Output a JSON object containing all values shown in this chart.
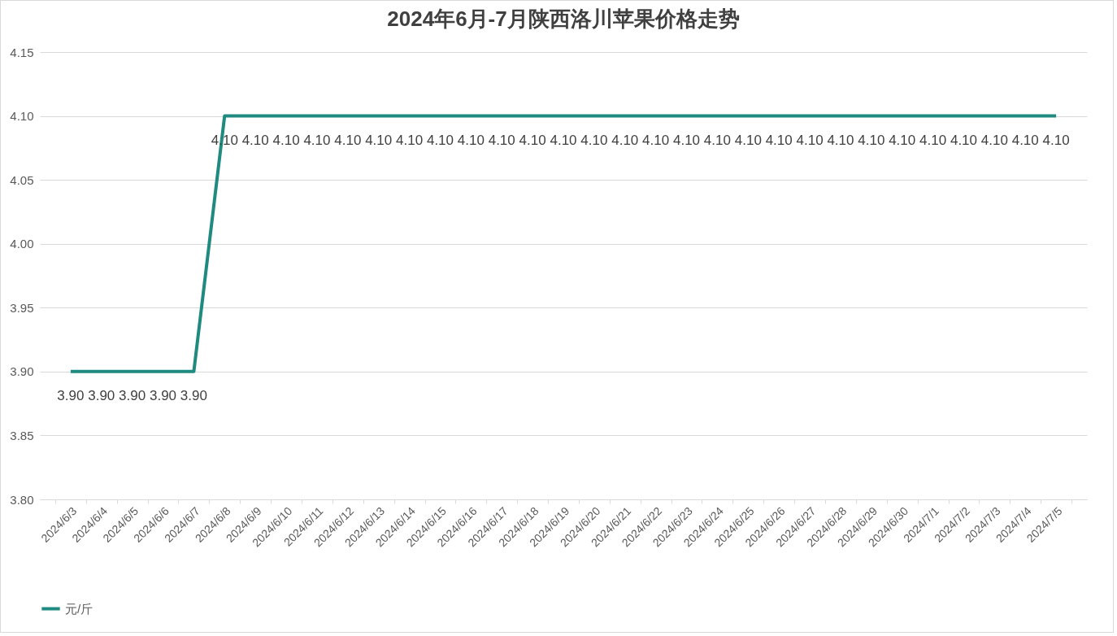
{
  "chart_data": {
    "type": "line",
    "title": "2024年6月-7月陕西洛川苹果价格走势",
    "categories": [
      "2024/6/3",
      "2024/6/4",
      "2024/6/5",
      "2024/6/6",
      "2024/6/7",
      "2024/6/8",
      "2024/6/9",
      "2024/6/10",
      "2024/6/11",
      "2024/6/12",
      "2024/6/13",
      "2024/6/14",
      "2024/6/15",
      "2024/6/16",
      "2024/6/17",
      "2024/6/18",
      "2024/6/19",
      "2024/6/20",
      "2024/6/21",
      "2024/6/22",
      "2024/6/23",
      "2024/6/24",
      "2024/6/25",
      "2024/6/26",
      "2024/6/27",
      "2024/6/28",
      "2024/6/29",
      "2024/6/30",
      "2024/7/1",
      "2024/7/2",
      "2024/7/3",
      "2024/7/4",
      "2024/7/5"
    ],
    "series": [
      {
        "name": "元/斤",
        "color": "#1f8a80",
        "values": [
          3.9,
          3.9,
          3.9,
          3.9,
          3.9,
          4.1,
          4.1,
          4.1,
          4.1,
          4.1,
          4.1,
          4.1,
          4.1,
          4.1,
          4.1,
          4.1,
          4.1,
          4.1,
          4.1,
          4.1,
          4.1,
          4.1,
          4.1,
          4.1,
          4.1,
          4.1,
          4.1,
          4.1,
          4.1,
          4.1,
          4.1,
          4.1,
          4.1
        ],
        "value_labels": [
          "3.90",
          "3.90",
          "3.90",
          "3.90",
          "3.90",
          "4.10",
          "4.10",
          "4.10",
          "4.10",
          "4.10",
          "4.10",
          "4.10",
          "4.10",
          "4.10",
          "4.10",
          "4.10",
          "4.10",
          "4.10",
          "4.10",
          "4.10",
          "4.10",
          "4.10",
          "4.10",
          "4.10",
          "4.10",
          "4.10",
          "4.10",
          "4.10",
          "4.10",
          "4.10",
          "4.10",
          "4.10",
          "4.10"
        ]
      }
    ],
    "ylim": [
      3.8,
      4.15
    ],
    "yticks": [
      {
        "value": 3.8,
        "label": "3.80"
      },
      {
        "value": 3.85,
        "label": "3.85"
      },
      {
        "value": 3.9,
        "label": "3.90"
      },
      {
        "value": 3.95,
        "label": "3.95"
      },
      {
        "value": 4.0,
        "label": "4.00"
      },
      {
        "value": 4.05,
        "label": "4.05"
      },
      {
        "value": 4.1,
        "label": "4.10"
      },
      {
        "value": 4.15,
        "label": "4.15"
      }
    ],
    "grid": "y",
    "legend": "bottom",
    "marker": "none",
    "line_style": "solid"
  }
}
